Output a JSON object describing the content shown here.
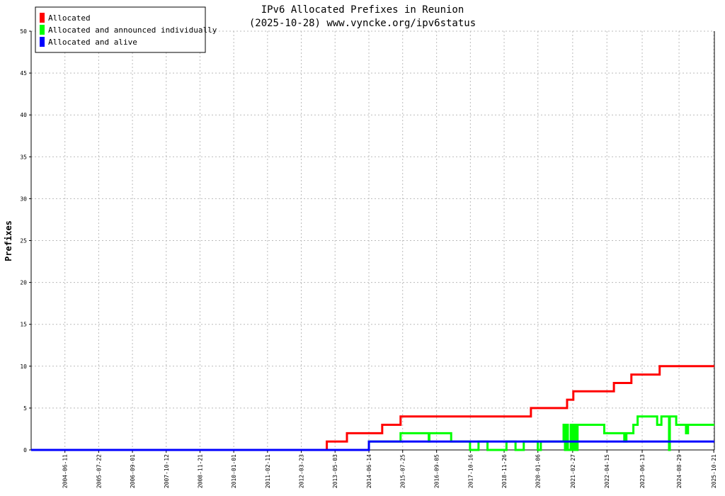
{
  "chart_data": {
    "type": "line",
    "step": "post",
    "title": "IPv6 Allocated Prefixes in Reunion",
    "subtitle": "(2025-10-28) www.vyncke.org/ipv6status",
    "ylabel": "Prefixes",
    "xlim": [
      "2003-05-02",
      "2025-10-28"
    ],
    "xticks": [
      "2004-06-11",
      "2005-07-22",
      "2006-09-01",
      "2007-10-12",
      "2008-11-21",
      "2010-01-01",
      "2011-02-11",
      "2012-03-23",
      "2013-05-03",
      "2014-06-14",
      "2015-07-25",
      "2016-09-05",
      "2017-10-16",
      "2018-11-26",
      "2020-01-06",
      "2021-02-27",
      "2022-04-15",
      "2023-06-13",
      "2024-08-29",
      "2025-10-21"
    ],
    "ylim": [
      0,
      50
    ],
    "yticks": [
      0,
      5,
      10,
      15,
      20,
      25,
      30,
      35,
      40,
      45,
      50
    ],
    "grid": true,
    "legend": "top-left",
    "series": [
      {
        "name": "Allocated",
        "color": "#ff0000",
        "x": [
          "2003-05-02",
          "2013-01-24",
          "2013-09-23",
          "2014-11-21",
          "2015-06-30",
          "2019-10-14",
          "2020-12-22",
          "2021-03-07",
          "2022-07-08",
          "2023-02-03",
          "2024-01-09",
          "2025-10-28"
        ],
        "values": [
          0,
          1,
          2,
          3,
          4,
          5,
          6,
          7,
          8,
          9,
          10,
          10
        ]
      },
      {
        "name": "Allocated and announced individually",
        "color": "#00ff00",
        "x": [
          "2003-05-02",
          "2014-06-14",
          "2015-06-30",
          "2016-06-03",
          "2016-06-10",
          "2017-02-27",
          "2017-10-12",
          "2018-01-22",
          "2018-05-10",
          "2018-12-24",
          "2019-04-12",
          "2019-07-20",
          "2020-01-05",
          "2020-02-10",
          "2020-11-10",
          "2020-11-27",
          "2020-12-14",
          "2020-12-31",
          "2021-02-04",
          "2021-03-01",
          "2021-03-18",
          "2021-04-04",
          "2021-04-27",
          "2022-03-14",
          "2022-11-10",
          "2022-12-05",
          "2023-02-27",
          "2023-04-19",
          "2023-12-10",
          "2024-01-30",
          "2024-05-01",
          "2024-05-10",
          "2024-07-26",
          "2024-11-21",
          "2024-12-15",
          "2025-10-28"
        ],
        "values": [
          0,
          1,
          2,
          1,
          2,
          1,
          0,
          1,
          0,
          1,
          0,
          1,
          0,
          1,
          3,
          0,
          3,
          0,
          3,
          0,
          3,
          0,
          3,
          2,
          1,
          2,
          3,
          4,
          3,
          4,
          0,
          4,
          3,
          2,
          3,
          3
        ]
      },
      {
        "name": "Allocated and alive",
        "color": "#0000ff",
        "x": [
          "2003-05-02",
          "2014-06-14",
          "2025-10-28"
        ],
        "values": [
          0,
          1,
          1
        ]
      }
    ]
  }
}
